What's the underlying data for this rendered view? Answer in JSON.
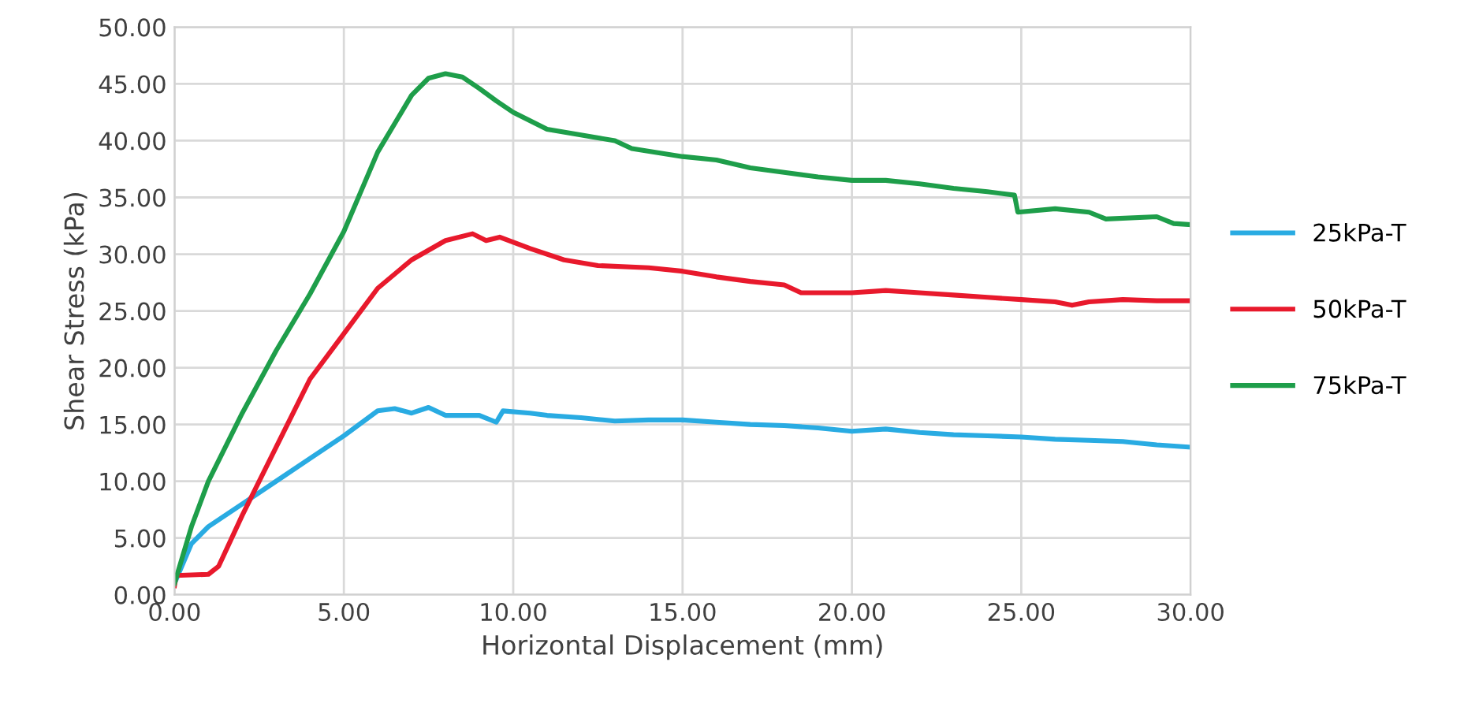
{
  "chart_data": {
    "type": "line",
    "xlabel": "Horizontal Displacement (mm)",
    "ylabel": "Shear Stress (kPa)",
    "xlim": [
      0,
      30
    ],
    "ylim": [
      0,
      50
    ],
    "xticks": [
      {
        "value": 0,
        "label": "0.00"
      },
      {
        "value": 5,
        "label": "5.00"
      },
      {
        "value": 10,
        "label": "10.00"
      },
      {
        "value": 15,
        "label": "15.00"
      },
      {
        "value": 20,
        "label": "20.00"
      },
      {
        "value": 25,
        "label": "25.00"
      },
      {
        "value": 30,
        "label": "30.00"
      }
    ],
    "yticks": [
      {
        "value": 0,
        "label": "0.00"
      },
      {
        "value": 5,
        "label": "5.00"
      },
      {
        "value": 10,
        "label": "10.00"
      },
      {
        "value": 15,
        "label": "15.00"
      },
      {
        "value": 20,
        "label": "20.00"
      },
      {
        "value": 25,
        "label": "25.00"
      },
      {
        "value": 30,
        "label": "30.00"
      },
      {
        "value": 35,
        "label": "35.00"
      },
      {
        "value": 40,
        "label": "40.00"
      },
      {
        "value": 45,
        "label": "45.00"
      },
      {
        "value": 50,
        "label": "50.00"
      }
    ],
    "grid": true,
    "legend": "right",
    "marker": "none",
    "line_style": "solid",
    "series": [
      {
        "name": "25kPa-T",
        "color": "#29abe2",
        "x": [
          0,
          0.5,
          1,
          2,
          3,
          4,
          5,
          6,
          6.5,
          7,
          7.5,
          8,
          9,
          9.5,
          9.7,
          10.5,
          11,
          12,
          13,
          14,
          15,
          16,
          17,
          18,
          19,
          20,
          21,
          22,
          23,
          24,
          25,
          26,
          27,
          28,
          29,
          30
        ],
        "values": [
          1,
          4.5,
          6,
          8,
          10,
          12,
          14,
          16.2,
          16.4,
          16,
          16.5,
          15.8,
          15.8,
          15.2,
          16.2,
          16,
          15.8,
          15.6,
          15.3,
          15.4,
          15.4,
          15.2,
          15,
          14.9,
          14.7,
          14.4,
          14.6,
          14.3,
          14.1,
          14,
          13.9,
          13.7,
          13.6,
          13.5,
          13.2,
          13
        ]
      },
      {
        "name": "50kPa-T",
        "color": "#e8192c",
        "x": [
          0,
          0.05,
          1,
          1.3,
          2,
          3,
          4,
          5,
          6,
          7,
          8,
          8.8,
          9.2,
          9.6,
          10.5,
          11.5,
          12.5,
          14,
          15,
          16,
          17,
          18,
          18.5,
          20,
          21,
          22,
          23,
          24,
          25,
          26,
          26.5,
          27,
          28,
          29,
          30
        ],
        "values": [
          0.8,
          1.7,
          1.8,
          2.5,
          7,
          13,
          19,
          23,
          27,
          29.5,
          31.2,
          31.8,
          31.2,
          31.5,
          30.5,
          29.5,
          29,
          28.8,
          28.5,
          28,
          27.6,
          27.3,
          26.6,
          26.6,
          26.8,
          26.6,
          26.4,
          26.2,
          26,
          25.8,
          25.5,
          25.8,
          26,
          25.9,
          25.9
        ]
      },
      {
        "name": "75kPa-T",
        "color": "#1e9e4a",
        "x": [
          0,
          0.5,
          1,
          2,
          3,
          4,
          5,
          6,
          7,
          7.5,
          8,
          8.5,
          9,
          9.5,
          10,
          11,
          12,
          13,
          13.5,
          15,
          16,
          17,
          18,
          19,
          20,
          21,
          22,
          23,
          24,
          24.8,
          24.9,
          26,
          27,
          27.5,
          29,
          29.5,
          30
        ],
        "values": [
          1,
          6,
          10,
          16,
          21.5,
          26.5,
          32,
          39,
          44,
          45.5,
          45.9,
          45.6,
          44.6,
          43.5,
          42.5,
          41,
          40.5,
          40,
          39.3,
          38.6,
          38.3,
          37.6,
          37.2,
          36.8,
          36.5,
          36.5,
          36.2,
          35.8,
          35.5,
          35.2,
          33.7,
          34,
          33.7,
          33.1,
          33.3,
          32.7,
          32.6
        ]
      }
    ]
  }
}
